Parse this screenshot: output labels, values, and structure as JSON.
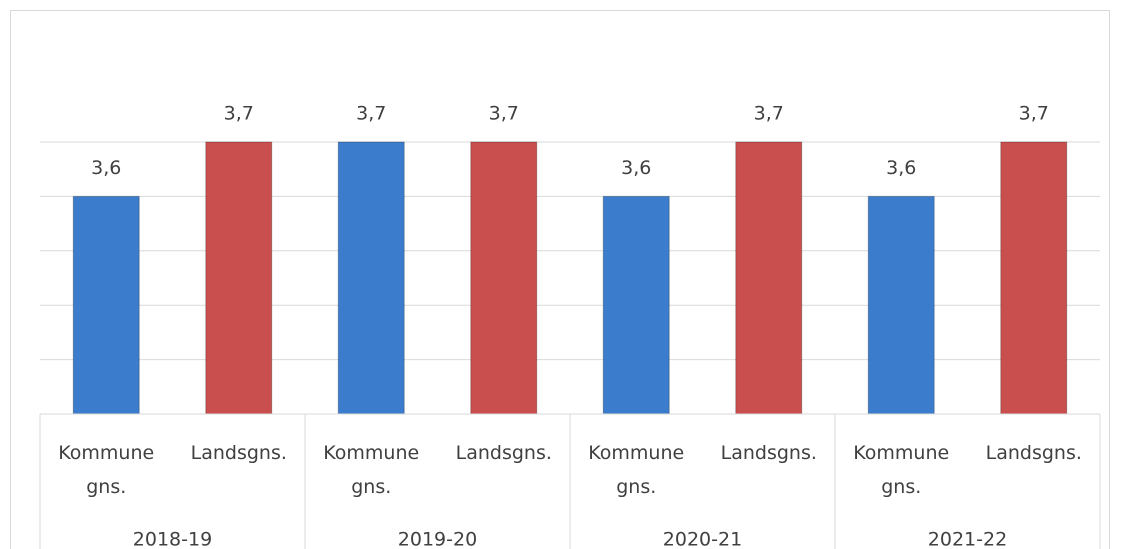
{
  "chart_data": {
    "type": "bar",
    "categories": [
      "2018-19",
      "2019-20",
      "2020-21",
      "2021-22"
    ],
    "series": [
      {
        "name": "Kommune gns.",
        "color": "#3b7dcc",
        "values": [
          3.6,
          3.7,
          3.6,
          3.6
        ],
        "value_labels": [
          "3,6",
          "3,7",
          "3,6",
          "3,6"
        ]
      },
      {
        "name": "Landsgns.",
        "color": "#c84f4e",
        "values": [
          3.7,
          3.7,
          3.7,
          3.7
        ],
        "value_labels": [
          "3,7",
          "3,7",
          "3,7",
          "3,7"
        ]
      }
    ],
    "ylim": [
      3.2,
      3.7
    ],
    "yticks": [
      3.2,
      3.3,
      3.4,
      3.5,
      3.6,
      3.7
    ],
    "grid": true
  }
}
